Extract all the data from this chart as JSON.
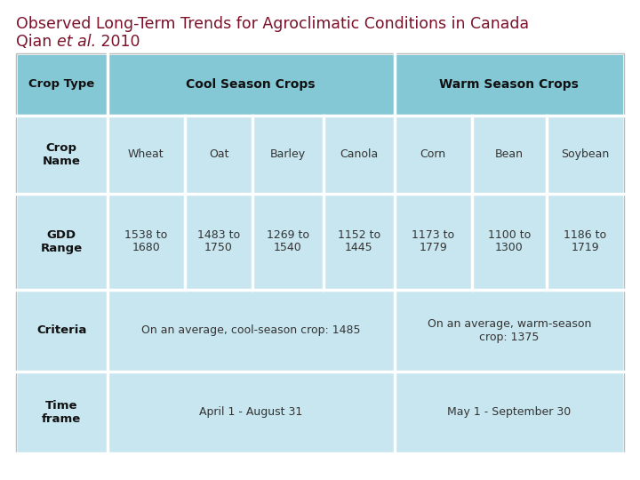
{
  "title_line1": "Observed Long-Term Trends for Agroclimatic Conditions in Canada",
  "title_line2_pre": "Qian ",
  "title_line2_italic": "et al.",
  "title_line2_post": " 2010",
  "title_color": "#7B1028",
  "bg_color": "#ffffff",
  "header_bg": "#85C8D5",
  "row_bg": "#C8E6EF",
  "white": "#ffffff",
  "text_dark": "#222222",
  "header_text": "#111111",
  "label_bold_text": "#111111",
  "data_text": "#333333",
  "crop_names": [
    "Wheat",
    "Oat",
    "Barley",
    "Canola",
    "Corn",
    "Bean",
    "Soybean"
  ],
  "gdd_ranges": [
    "1538 to\n1680",
    "1483 to\n1750",
    "1269 to\n1540",
    "1152 to\n1445",
    "1173 to\n1779",
    "1100 to\n1300",
    "1186 to\n1719"
  ],
  "criteria_cool": "On an average, cool-season crop: 1485",
  "criteria_warm": "On an average, warm-season\ncrop: 1375",
  "time_cool": "April 1 - August 31",
  "time_warm": "May 1 - September 30"
}
